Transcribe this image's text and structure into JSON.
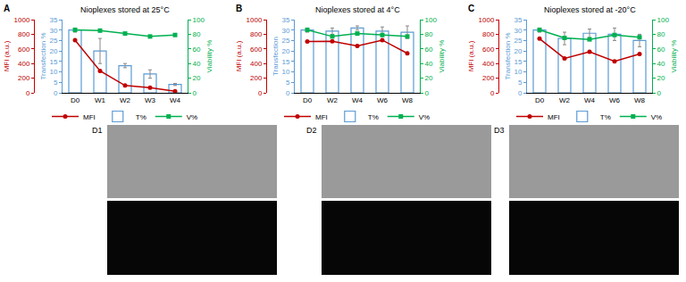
{
  "chart_data": [
    {
      "type": "bar",
      "title": "Nioplexes stored at 25°C",
      "annotations": [
        "A"
      ],
      "categories": [
        "D0",
        "W1",
        "W2",
        "W3",
        "W4"
      ],
      "y_label": "MFI (a.u.)",
      "ylim": [
        0,
        1000
      ],
      "yticks": [
        0,
        200,
        400,
        600,
        800,
        1000
      ],
      "y2_label": "Transfection %",
      "y2lim": [
        0,
        35
      ],
      "y2ticks": [
        0,
        5,
        10,
        15,
        20,
        25,
        30,
        35
      ],
      "y3_label": "Viability %",
      "y3lim": [
        0,
        100
      ],
      "y3ticks": [
        0,
        20,
        40,
        60,
        80,
        100
      ],
      "grid": false,
      "legend": "bottom",
      "series": [
        {
          "name": "MFI",
          "type": "line",
          "color": "#c00000",
          "marker": "circle",
          "values": [
            720,
            300,
            100,
            70,
            20
          ]
        },
        {
          "name": "T%",
          "type": "bar",
          "color": "#5b9bd5",
          "axis": "y2",
          "values": [
            30,
            20,
            13,
            9,
            4
          ],
          "errors": [
            1,
            6,
            1,
            2,
            0.5
          ]
        },
        {
          "name": "V%",
          "type": "line",
          "color": "#00b050",
          "marker": "square",
          "axis": "y3",
          "values": [
            86,
            85,
            81,
            77,
            79
          ]
        }
      ]
    },
    {
      "type": "bar",
      "title": "Nioplexes stored at 4°C",
      "annotations": [
        "B"
      ],
      "categories": [
        "D0",
        "W2",
        "W4",
        "W6",
        "W8"
      ],
      "y_label": "MFI (a.u.)",
      "ylim": [
        0,
        1000
      ],
      "yticks": [
        0,
        200,
        400,
        600,
        800,
        1000
      ],
      "y2_label": "Transfection",
      "y2lim": [
        0,
        35
      ],
      "y2ticks": [
        0,
        5,
        10,
        15,
        20,
        25,
        30,
        35
      ],
      "y3_label": "Viability %",
      "y3lim": [
        0,
        100
      ],
      "y3ticks": [
        0,
        20,
        40,
        60,
        80,
        100
      ],
      "grid": false,
      "legend": "bottom",
      "series": [
        {
          "name": "MFI",
          "type": "line",
          "color": "#c00000",
          "marker": "circle",
          "values": [
            700,
            705,
            640,
            720,
            540
          ]
        },
        {
          "name": "T%",
          "type": "bar",
          "color": "#5b9bd5",
          "axis": "y2",
          "values": [
            30,
            29.5,
            31,
            29.5,
            29
          ],
          "errors": [
            1,
            1.5,
            1,
            2,
            3
          ]
        },
        {
          "name": "V%",
          "type": "line",
          "color": "#00b050",
          "marker": "square",
          "axis": "y3",
          "values": [
            86,
            77,
            81,
            79,
            77
          ]
        }
      ]
    },
    {
      "type": "bar",
      "title": "Nioplexes stored at -20°C",
      "annotations": [
        "C"
      ],
      "categories": [
        "D0",
        "W2",
        "W4",
        "W6",
        "W8"
      ],
      "y_label": "MFI (a.u.)",
      "ylim": [
        0,
        1000
      ],
      "yticks": [
        0,
        200,
        400,
        600,
        800,
        1000
      ],
      "y2_label": "Transfection %",
      "y2lim": [
        0,
        35
      ],
      "y2ticks": [
        0,
        5,
        10,
        15,
        20,
        25,
        30,
        35
      ],
      "y3_label": "Viability %",
      "y3lim": [
        0,
        100
      ],
      "y3ticks": [
        0,
        20,
        40,
        60,
        80,
        100
      ],
      "grid": false,
      "legend": "bottom",
      "series": [
        {
          "name": "MFI",
          "type": "line",
          "color": "#c00000",
          "marker": "circle",
          "values": [
            740,
            470,
            560,
            430,
            530
          ]
        },
        {
          "name": "T%",
          "type": "bar",
          "color": "#5b9bd5",
          "axis": "y2",
          "values": [
            30,
            26,
            28.5,
            28,
            25
          ],
          "errors": [
            1,
            3,
            2,
            3,
            3
          ]
        },
        {
          "name": "V%",
          "type": "line",
          "color": "#00b050",
          "marker": "square",
          "axis": "y3",
          "values": [
            86,
            75,
            73,
            79,
            76
          ]
        }
      ]
    }
  ],
  "images": {
    "labels": [
      "D1",
      "D2",
      "D3"
    ]
  }
}
